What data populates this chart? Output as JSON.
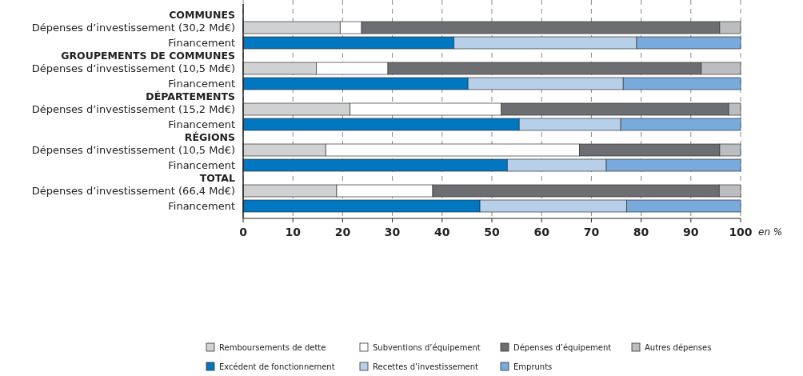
{
  "chart_data": {
    "type": "bar",
    "orientation": "horizontal",
    "stacked": true,
    "categories": [
      "COMMUNES",
      "Dépenses d’investissement (30,2 Md€)",
      "Financement",
      "GROUPEMENTS DE COMMUNES",
      "Dépenses d’investissement (10,5 Md€)",
      "Financement",
      "DÉPARTEMENTS",
      "Dépenses d’investissement (15,2 Md€)",
      "Financement",
      "RÉGIONS",
      "Dépenses d’investissement (10,5 Md€)",
      "Financement",
      "TOTAL",
      "Dépenses d’investissement (66,4 Md€)",
      "Financement"
    ],
    "series": [
      {
        "name": "Remboursements de dette",
        "color": "#d0d1d3",
        "values": [
          null,
          19.5,
          null,
          null,
          14.7,
          null,
          null,
          21.5,
          null,
          null,
          16.6,
          null,
          null,
          18.8,
          null
        ]
      },
      {
        "name": "Subventions d’équipement",
        "color": "#ffffff",
        "values": [
          null,
          4.3,
          null,
          null,
          14.4,
          null,
          null,
          30.4,
          null,
          null,
          51.0,
          null,
          null,
          19.3,
          null
        ]
      },
      {
        "name": "Dépenses d’équipement",
        "color": "#6d6e71",
        "values": [
          null,
          72.0,
          null,
          null,
          63.0,
          null,
          null,
          45.7,
          null,
          null,
          28.2,
          null,
          null,
          57.6,
          null
        ]
      },
      {
        "name": "Autres dépenses",
        "color": "#bcbdc0",
        "values": [
          null,
          4.2,
          null,
          null,
          7.9,
          null,
          null,
          2.4,
          null,
          null,
          4.2,
          null,
          null,
          4.3,
          null
        ]
      },
      {
        "name": "Excédent de fonctionnement",
        "color": "#0077c0",
        "values": [
          null,
          null,
          42.4,
          null,
          null,
          45.2,
          null,
          null,
          55.5,
          null,
          null,
          53.1,
          null,
          null,
          47.6
        ]
      },
      {
        "name": "Recettes d’investissement",
        "color": "#b8cfea",
        "values": [
          null,
          null,
          36.7,
          null,
          null,
          31.2,
          null,
          null,
          20.4,
          null,
          null,
          19.9,
          null,
          null,
          29.5
        ]
      },
      {
        "name": "Emprunts",
        "color": "#79aadc",
        "values": [
          null,
          null,
          20.9,
          null,
          null,
          23.6,
          null,
          null,
          24.1,
          null,
          null,
          27.0,
          null,
          null,
          22.9
        ]
      }
    ],
    "xlim": [
      0,
      100
    ],
    "xticks": [
      0,
      10,
      20,
      30,
      40,
      50,
      60,
      70,
      80,
      90,
      100
    ],
    "xlabel": "en %",
    "grid": "x",
    "legend": "bottom"
  }
}
